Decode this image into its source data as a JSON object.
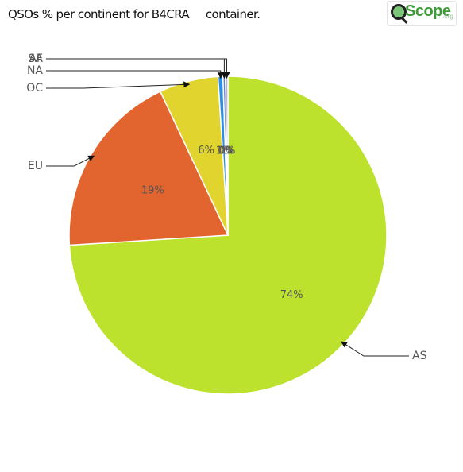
{
  "page_title": "QSOs % per continent for B4CRA     container.",
  "logo": {
    "wordmark": "Scope",
    "suffix": ".org",
    "icon": "magnifier-icon"
  },
  "chart_data": {
    "type": "pie",
    "title": "QSOs % per continent for B4CRA     container.",
    "slices": [
      {
        "label": "AS",
        "value": 74,
        "pct_text": "74%",
        "color": "#bde22d"
      },
      {
        "label": "EU",
        "value": 19,
        "pct_text": "19%",
        "color": "#e2642e"
      },
      {
        "label": "OC",
        "value": 6,
        "pct_text": "6%",
        "color": "#e2d42e"
      },
      {
        "label": "NA",
        "value": 0.5,
        "pct_text": "1%",
        "color": "#2e8fe2"
      },
      {
        "label": "SA",
        "value": 0.25,
        "pct_text": "0%",
        "color": "#6a7fd0"
      },
      {
        "label": "AF",
        "value": 0.25,
        "pct_text": "0%",
        "color": "#b0b6e0"
      }
    ]
  }
}
